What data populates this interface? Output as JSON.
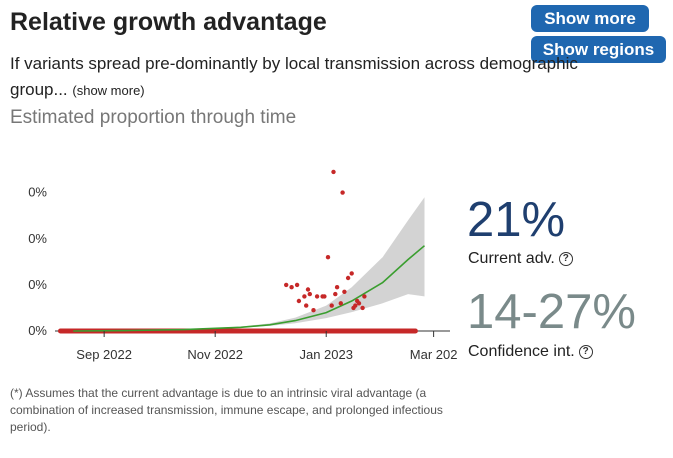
{
  "header": {
    "title": "Relative growth advantage",
    "show_more_button": "Show more",
    "show_regions_button": "Show regions"
  },
  "description": {
    "text": "If variants spread pre-dominantly by local transmission across demographic group...",
    "show_more_link": "(show more)"
  },
  "subtitle": "Estimated proportion through time",
  "advantage": {
    "current_value": "21%",
    "current_label": "Current adv.",
    "ci_value": "14-27%",
    "ci_label": "Confidence int.",
    "help_icon": "question-circle-icon"
  },
  "footnote": "(*) Assumes that the current advantage is due to an intrinsic viral advantage (a combination of increased transmission, immune escape, and prolonged infectious period).",
  "colors": {
    "accent": "#1f67b0",
    "fit_line": "#3a9e2f",
    "ci_band": "#d3d3d3",
    "points": "#c62828",
    "current_value": "#1f3f6f",
    "ci_value": "#7a8a8a"
  },
  "chart_data": {
    "type": "line",
    "title": "",
    "xlabel": "",
    "ylabel": "",
    "x_range": [
      "2022-08-05",
      "2023-03-10"
    ],
    "x_ticks": [
      {
        "date": "2022-09-01",
        "label": "Sep 2022"
      },
      {
        "date": "2022-11-01",
        "label": "Nov 2022"
      },
      {
        "date": "2023-01-01",
        "label": "Jan 2023"
      },
      {
        "date": "2023-03-01",
        "label": "Mar 202"
      }
    ],
    "y_range": [
      0,
      0.0085
    ],
    "y_ticks": [
      {
        "value": 0,
        "label": "0%"
      },
      {
        "value": 0.002,
        "label": "0%"
      },
      {
        "value": 0.004,
        "label": "0%"
      },
      {
        "value": 0.006,
        "label": "0%"
      }
    ],
    "fit": {
      "dates": [
        "2022-08-15",
        "2022-09-15",
        "2022-10-15",
        "2022-11-15",
        "2022-12-01",
        "2022-12-15",
        "2023-01-01",
        "2023-01-15",
        "2023-02-01",
        "2023-02-15",
        "2023-02-24"
      ],
      "values": [
        0,
        2e-05,
        6e-05,
        0.00016,
        0.00027,
        0.00045,
        0.0008,
        0.0013,
        0.0021,
        0.0031,
        0.0037
      ],
      "ci_lower": [
        0,
        2e-05,
        6e-05,
        0.00014,
        0.00022,
        0.00034,
        0.00056,
        0.00082,
        0.0012,
        0.0016,
        0.0015
      ],
      "ci_upper": [
        0,
        2e-05,
        7e-05,
        0.00019,
        0.00033,
        0.00058,
        0.0011,
        0.0019,
        0.0032,
        0.0048,
        0.0058
      ]
    },
    "points": [
      {
        "date": "2022-12-10",
        "value": 0.002
      },
      {
        "date": "2022-12-13",
        "value": 0.0019
      },
      {
        "date": "2022-12-16",
        "value": 0.002
      },
      {
        "date": "2022-12-17",
        "value": 0.0013
      },
      {
        "date": "2022-12-20",
        "value": 0.0015
      },
      {
        "date": "2022-12-21",
        "value": 0.0011
      },
      {
        "date": "2022-12-22",
        "value": 0.0018
      },
      {
        "date": "2022-12-23",
        "value": 0.0016
      },
      {
        "date": "2022-12-25",
        "value": 0.0009
      },
      {
        "date": "2022-12-27",
        "value": 0.0015
      },
      {
        "date": "2022-12-30",
        "value": 0.0015
      },
      {
        "date": "2022-12-31",
        "value": 0.0015
      },
      {
        "date": "2023-01-02",
        "value": 0.0032
      },
      {
        "date": "2023-01-04",
        "value": 0.0011
      },
      {
        "date": "2023-01-05",
        "value": 0.0069
      },
      {
        "date": "2023-01-06",
        "value": 0.0016
      },
      {
        "date": "2023-01-07",
        "value": 0.0019
      },
      {
        "date": "2023-01-09",
        "value": 0.0012
      },
      {
        "date": "2023-01-10",
        "value": 0.006
      },
      {
        "date": "2023-01-11",
        "value": 0.0017
      },
      {
        "date": "2023-01-13",
        "value": 0.0023
      },
      {
        "date": "2023-01-15",
        "value": 0.0025
      },
      {
        "date": "2023-01-16",
        "value": 0.001
      },
      {
        "date": "2023-01-17",
        "value": 0.0011
      },
      {
        "date": "2023-01-18",
        "value": 0.0013
      },
      {
        "date": "2023-01-19",
        "value": 0.0012
      },
      {
        "date": "2023-01-21",
        "value": 0.001
      },
      {
        "date": "2023-01-22",
        "value": 0.0015
      }
    ],
    "zero_points_range": [
      "2022-08-08",
      "2023-02-19"
    ],
    "grid": false,
    "legend": "none"
  }
}
